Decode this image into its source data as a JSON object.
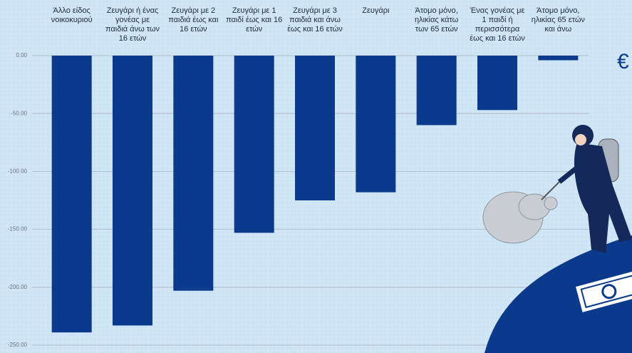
{
  "chart_data": {
    "type": "bar",
    "categories": [
      "Άλλο είδος νοικοκυριού",
      "Ζευγάρι ή ένας γονέας με παιδιά άνω των 16 ετών",
      "Ζευγάρι με 2 παιδιά έως και 16 ετών",
      "Ζευγάρι με 1 παιδί έως και 16 ετών",
      "Ζευγάρι με 3 παιδιά και άνω έως και 16 ετών",
      "Ζευγάρι",
      "Άτομο μόνο, ηλικίας κάτω των 65 ετών",
      "Ένας γονέας με 1 παιδί ή περισσότερα έως και 16 ετών",
      "Άτομο μόνο, ηλικίας 65 ετών και άνω"
    ],
    "values": [
      -239,
      -233,
      -203,
      -153,
      -125,
      -118,
      -60,
      -47,
      -4
    ],
    "color": "#0b3a8c",
    "ylim": [
      -255,
      0
    ],
    "yticks": [
      {
        "value": 0,
        "label": "0.00"
      },
      {
        "value": -50,
        "label": "-50.00"
      },
      {
        "value": -100,
        "label": "-100.00"
      },
      {
        "value": -150,
        "label": "-150.00"
      },
      {
        "value": -200,
        "label": "-200.00"
      },
      {
        "value": -250,
        "label": "-250.00"
      }
    ],
    "grid": true,
    "symbol": "€"
  }
}
